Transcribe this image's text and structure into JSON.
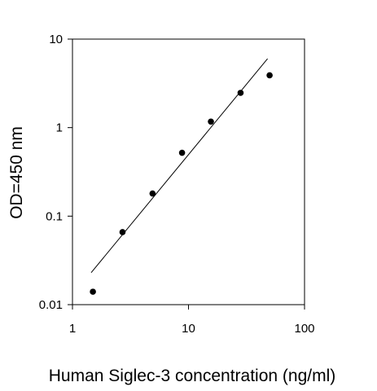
{
  "chart_data": {
    "type": "scatter",
    "title": "",
    "xlabel": "Human Siglec-3 concentration (ng/ml)",
    "ylabel": "OD=450 nm",
    "xscale": "log",
    "yscale": "log",
    "xlim": [
      1,
      100
    ],
    "ylim": [
      0.01,
      10
    ],
    "x_ticks": [
      1,
      10,
      100
    ],
    "x_tick_labels": [
      "1",
      "10",
      "100"
    ],
    "y_ticks": [
      0.01,
      0.1,
      1,
      10
    ],
    "y_tick_labels": [
      "0.01",
      "0.1",
      "1",
      "10"
    ],
    "grid": false,
    "legend": "none",
    "points": [
      {
        "x": 1.5,
        "y": 0.014
      },
      {
        "x": 2.7,
        "y": 0.066
      },
      {
        "x": 4.9,
        "y": 0.18
      },
      {
        "x": 8.8,
        "y": 0.52
      },
      {
        "x": 15.6,
        "y": 1.17
      },
      {
        "x": 28.1,
        "y": 2.47
      },
      {
        "x": 50,
        "y": 3.9
      }
    ],
    "fit_line": [
      {
        "x": 1.45,
        "y": 0.023
      },
      {
        "x": 48,
        "y": 6.0
      }
    ],
    "colors": {
      "points": "#000000",
      "line": "#000000",
      "axes": "#000000"
    }
  }
}
